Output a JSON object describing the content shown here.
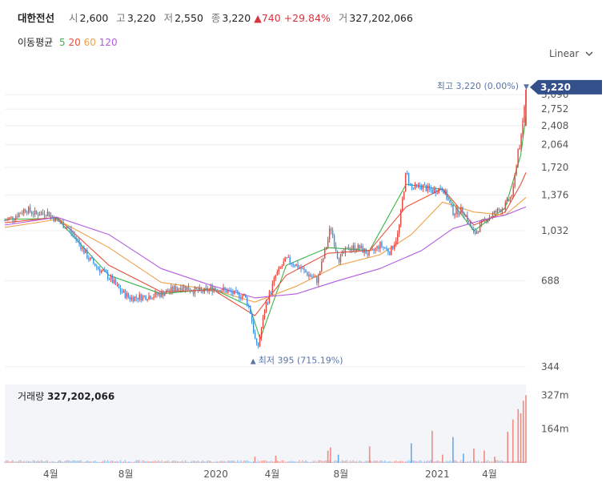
{
  "header": {
    "name": "대한전선",
    "open_label": "시",
    "open": "2,600",
    "high_label": "고",
    "high": "3,220",
    "low_label": "저",
    "low": "2,550",
    "close_label": "종",
    "close": "3,220",
    "change_arrow": "▲",
    "change": "740",
    "change_pct": "+29.84%",
    "volume_label": "거",
    "volume": "327,202,066"
  },
  "ma_legend": {
    "title": "이동평균",
    "items": [
      {
        "label": "5",
        "color": "#3cb44b"
      },
      {
        "label": "20",
        "color": "#e8503a"
      },
      {
        "label": "60",
        "color": "#f0a04b"
      },
      {
        "label": "120",
        "color": "#b35ce0"
      }
    ]
  },
  "scale_toggle": {
    "label": "Linear",
    "icon": "chevron-down-icon"
  },
  "chart_data": {
    "type": "candlestick",
    "y_scale": "log",
    "y_ticks": [
      "3,096",
      "2,752",
      "2,408",
      "2,064",
      "1,720",
      "1,376",
      "1,032",
      "688",
      "344"
    ],
    "y_tick_values": [
      3096,
      2752,
      2408,
      2064,
      1720,
      1376,
      1032,
      688,
      344
    ],
    "x_ticks": [
      "4월",
      "8월",
      "2020",
      "4월",
      "8월",
      "2021",
      "4월"
    ],
    "last_price_label": "3,220",
    "last_price": 3220,
    "max_annotation": "최고 3,220 (0.00%)",
    "min_annotation": "최저 395 (715.19%)",
    "min_value": 395,
    "up_color": "#e8463c",
    "down_color": "#3f8fe0",
    "price_points": [
      [
        0.0,
        1120
      ],
      [
        0.02,
        1160
      ],
      [
        0.04,
        1230
      ],
      [
        0.06,
        1180
      ],
      [
        0.08,
        1200
      ],
      [
        0.1,
        1120
      ],
      [
        0.12,
        1060
      ],
      [
        0.14,
        950
      ],
      [
        0.16,
        830
      ],
      [
        0.18,
        760
      ],
      [
        0.2,
        710
      ],
      [
        0.22,
        640
      ],
      [
        0.24,
        600
      ],
      [
        0.26,
        605
      ],
      [
        0.28,
        610
      ],
      [
        0.3,
        620
      ],
      [
        0.32,
        640
      ],
      [
        0.34,
        660
      ],
      [
        0.36,
        640
      ],
      [
        0.38,
        630
      ],
      [
        0.4,
        650
      ],
      [
        0.42,
        640
      ],
      [
        0.44,
        620
      ],
      [
        0.46,
        610
      ],
      [
        0.47,
        550
      ],
      [
        0.48,
        430
      ],
      [
        0.485,
        395
      ],
      [
        0.5,
        560
      ],
      [
        0.52,
        720
      ],
      [
        0.54,
        820
      ],
      [
        0.56,
        780
      ],
      [
        0.58,
        730
      ],
      [
        0.6,
        690
      ],
      [
        0.62,
        960
      ],
      [
        0.625,
        1070
      ],
      [
        0.64,
        820
      ],
      [
        0.66,
        900
      ],
      [
        0.68,
        900
      ],
      [
        0.7,
        850
      ],
      [
        0.72,
        920
      ],
      [
        0.74,
        870
      ],
      [
        0.755,
        1010
      ],
      [
        0.77,
        1660
      ],
      [
        0.78,
        1450
      ],
      [
        0.8,
        1480
      ],
      [
        0.82,
        1420
      ],
      [
        0.84,
        1460
      ],
      [
        0.86,
        1200
      ],
      [
        0.88,
        1220
      ],
      [
        0.9,
        1000
      ],
      [
        0.92,
        1120
      ],
      [
        0.94,
        1190
      ],
      [
        0.96,
        1260
      ],
      [
        0.975,
        1400
      ],
      [
        0.985,
        2000
      ],
      [
        0.99,
        2100
      ],
      [
        0.995,
        2600
      ],
      [
        1.0,
        3220
      ]
    ],
    "ma": {
      "5": [
        [
          0.0,
          1130
        ],
        [
          0.1,
          1140
        ],
        [
          0.2,
          720
        ],
        [
          0.3,
          620
        ],
        [
          0.4,
          645
        ],
        [
          0.47,
          560
        ],
        [
          0.49,
          430
        ],
        [
          0.54,
          780
        ],
        [
          0.62,
          900
        ],
        [
          0.7,
          880
        ],
        [
          0.77,
          1500
        ],
        [
          0.84,
          1440
        ],
        [
          0.9,
          1030
        ],
        [
          0.96,
          1240
        ],
        [
          0.99,
          1900
        ],
        [
          1.0,
          2600
        ]
      ],
      "20": [
        [
          0.0,
          1100
        ],
        [
          0.1,
          1150
        ],
        [
          0.2,
          780
        ],
        [
          0.3,
          630
        ],
        [
          0.4,
          640
        ],
        [
          0.48,
          520
        ],
        [
          0.54,
          720
        ],
        [
          0.62,
          860
        ],
        [
          0.7,
          880
        ],
        [
          0.77,
          1250
        ],
        [
          0.84,
          1450
        ],
        [
          0.9,
          1080
        ],
        [
          0.96,
          1200
        ],
        [
          0.99,
          1500
        ],
        [
          1.0,
          1650
        ]
      ],
      "60": [
        [
          0.0,
          1060
        ],
        [
          0.1,
          1130
        ],
        [
          0.2,
          900
        ],
        [
          0.3,
          680
        ],
        [
          0.4,
          640
        ],
        [
          0.48,
          580
        ],
        [
          0.56,
          660
        ],
        [
          0.64,
          780
        ],
        [
          0.72,
          850
        ],
        [
          0.78,
          1000
        ],
        [
          0.84,
          1300
        ],
        [
          0.9,
          1200
        ],
        [
          0.96,
          1170
        ],
        [
          1.0,
          1350
        ]
      ],
      "120": [
        [
          0.0,
          1080
        ],
        [
          0.1,
          1150
        ],
        [
          0.2,
          1000
        ],
        [
          0.3,
          760
        ],
        [
          0.4,
          660
        ],
        [
          0.48,
          600
        ],
        [
          0.56,
          620
        ],
        [
          0.64,
          690
        ],
        [
          0.72,
          760
        ],
        [
          0.8,
          880
        ],
        [
          0.86,
          1050
        ],
        [
          0.92,
          1130
        ],
        [
          0.96,
          1170
        ],
        [
          1.0,
          1250
        ]
      ]
    },
    "volume_label": "거래량",
    "volume_value": "327,202,066",
    "volume_ticks": [
      "327m",
      "164m"
    ],
    "volume_tick_values": [
      327,
      164
    ],
    "volume_spikes": [
      [
        0.82,
        155,
        "up"
      ],
      [
        0.86,
        125,
        "down"
      ],
      [
        0.78,
        95,
        "down"
      ],
      [
        0.7,
        80,
        "up"
      ],
      [
        0.9,
        70,
        "up"
      ],
      [
        0.92,
        60,
        "up"
      ],
      [
        0.965,
        150,
        "up"
      ],
      [
        0.975,
        210,
        "up"
      ],
      [
        0.985,
        260,
        "up"
      ],
      [
        0.99,
        240,
        "up"
      ],
      [
        0.995,
        300,
        "up"
      ],
      [
        1.0,
        327,
        "up"
      ],
      [
        0.62,
        60,
        "up"
      ],
      [
        0.625,
        75,
        "up"
      ],
      [
        0.64,
        40,
        "down"
      ],
      [
        0.48,
        30,
        "up"
      ],
      [
        0.52,
        35,
        "up"
      ],
      [
        0.88,
        45,
        "down"
      ],
      [
        0.94,
        30,
        "up"
      ],
      [
        0.84,
        40,
        "up"
      ]
    ]
  }
}
